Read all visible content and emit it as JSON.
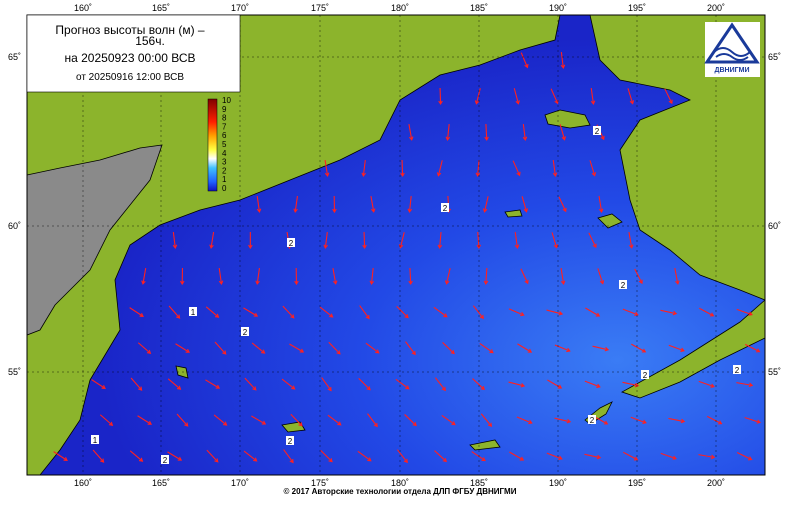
{
  "header": {
    "title_line1": "Прогноз высоты волн (м) –",
    "title_line2": "156ч.",
    "valid_time": "на 20250923 00:00 ВСВ",
    "issued": "от 20250916 12:00 ВСВ"
  },
  "logo": "ДВНИГМИ",
  "map": {
    "lon_labels": [
      "160˚",
      "165˚",
      "170˚",
      "175˚",
      "180˚",
      "185˚",
      "190˚",
      "195˚",
      "200˚"
    ],
    "lat_labels": [
      "65˚",
      "60˚",
      "55˚"
    ],
    "contour_labels": [
      "1",
      "1",
      "2",
      "2",
      "2",
      "2",
      "2",
      "2",
      "2",
      "2",
      "2",
      "2"
    ]
  },
  "legend": {
    "labels": [
      "10",
      "9",
      "8",
      "7",
      "6",
      "5",
      "4",
      "3",
      "2",
      "1",
      "0"
    ]
  },
  "footer": "© 2017 Авторские технологии отдела ДЛП ФГБУ ДВНИГМИ"
}
